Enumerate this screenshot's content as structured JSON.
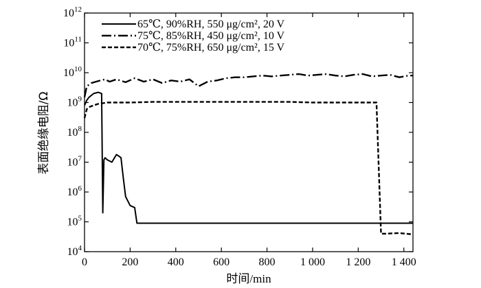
{
  "chart_data": {
    "type": "line",
    "xlabel": "时间/min",
    "ylabel": "表面绝缘电阻/Ω",
    "xlim": [
      0,
      1440
    ],
    "ylim": [
      10000,
      1000000000000
    ],
    "yscale": "log",
    "x_ticks": [
      0,
      200,
      400,
      600,
      800,
      1000,
      1200,
      1400
    ],
    "x_tick_labels": [
      "0",
      "200",
      "400",
      "600",
      "800",
      "1 000",
      "1 200",
      "1 400"
    ],
    "y_ticks": [
      10000,
      100000,
      1000000,
      10000000,
      100000000,
      1000000000,
      10000000000,
      100000000000,
      1000000000000
    ],
    "y_tick_labels": [
      {
        "base": "10",
        "exp": "4"
      },
      {
        "base": "10",
        "exp": "5"
      },
      {
        "base": "10",
        "exp": "6"
      },
      {
        "base": "10",
        "exp": "7"
      },
      {
        "base": "10",
        "exp": "8"
      },
      {
        "base": "10",
        "exp": "9"
      },
      {
        "base": "10",
        "exp": "10"
      },
      {
        "base": "10",
        "exp": "11"
      },
      {
        "base": "10",
        "exp": "12"
      }
    ],
    "grid": false,
    "legend_position": "top",
    "series": [
      {
        "name": "65℃, 90%RH, 550 μg/cm², 20 V",
        "style": "solid",
        "x": [
          0,
          10,
          20,
          40,
          60,
          75,
          80,
          85,
          90,
          100,
          120,
          140,
          150,
          160,
          170,
          180,
          200,
          220,
          230,
          300,
          1000,
          1440
        ],
        "y": [
          800000000,
          1200000000,
          1500000000,
          2000000000,
          2200000000,
          2000000000,
          200000,
          12000000,
          14000000,
          12000000,
          10000000,
          18000000,
          16000000,
          14000000,
          3000000,
          700000,
          350000,
          300000,
          90000,
          90000,
          90000,
          90000
        ]
      },
      {
        "name": "75℃, 85%RH, 450 μg/cm², 10 V",
        "style": "dashdot",
        "x": [
          0,
          10,
          30,
          50,
          70,
          90,
          110,
          140,
          180,
          220,
          260,
          300,
          340,
          380,
          420,
          460,
          500,
          540,
          580,
          620,
          660,
          700,
          740,
          780,
          820,
          860,
          900,
          940,
          980,
          1020,
          1060,
          1100,
          1140,
          1180,
          1220,
          1260,
          1300,
          1340,
          1380,
          1420,
          1440
        ],
        "y": [
          1500000000,
          3500000000,
          4500000000,
          5000000000,
          5500000000,
          6000000000,
          5000000000,
          6000000000,
          4800000000,
          6500000000,
          5000000000,
          6000000000,
          4500000000,
          5500000000,
          5000000000,
          6000000000,
          3500000000,
          5000000000,
          5500000000,
          6500000000,
          7000000000,
          7000000000,
          7500000000,
          8000000000,
          7500000000,
          8000000000,
          8500000000,
          9000000000,
          8000000000,
          8500000000,
          9000000000,
          8000000000,
          7500000000,
          8500000000,
          9000000000,
          7500000000,
          8000000000,
          8500000000,
          7000000000,
          8000000000,
          8000000000
        ]
      },
      {
        "name": "70℃, 75%RH, 650 μg/cm², 15 V",
        "style": "dashed",
        "x": [
          0,
          10,
          20,
          40,
          60,
          80,
          100,
          150,
          200,
          300,
          400,
          500,
          600,
          700,
          800,
          900,
          1000,
          1100,
          1200,
          1280,
          1300,
          1320,
          1380,
          1440
        ],
        "y": [
          300000000,
          600000000,
          700000000,
          800000000,
          900000000,
          950000000,
          1000000000,
          1000000000,
          1000000000,
          1050000000,
          1050000000,
          1050000000,
          1050000000,
          1050000000,
          1050000000,
          1050000000,
          1000000000,
          1000000000,
          1000000000,
          1000000000,
          40000,
          40000,
          42000,
          38000
        ]
      }
    ]
  }
}
